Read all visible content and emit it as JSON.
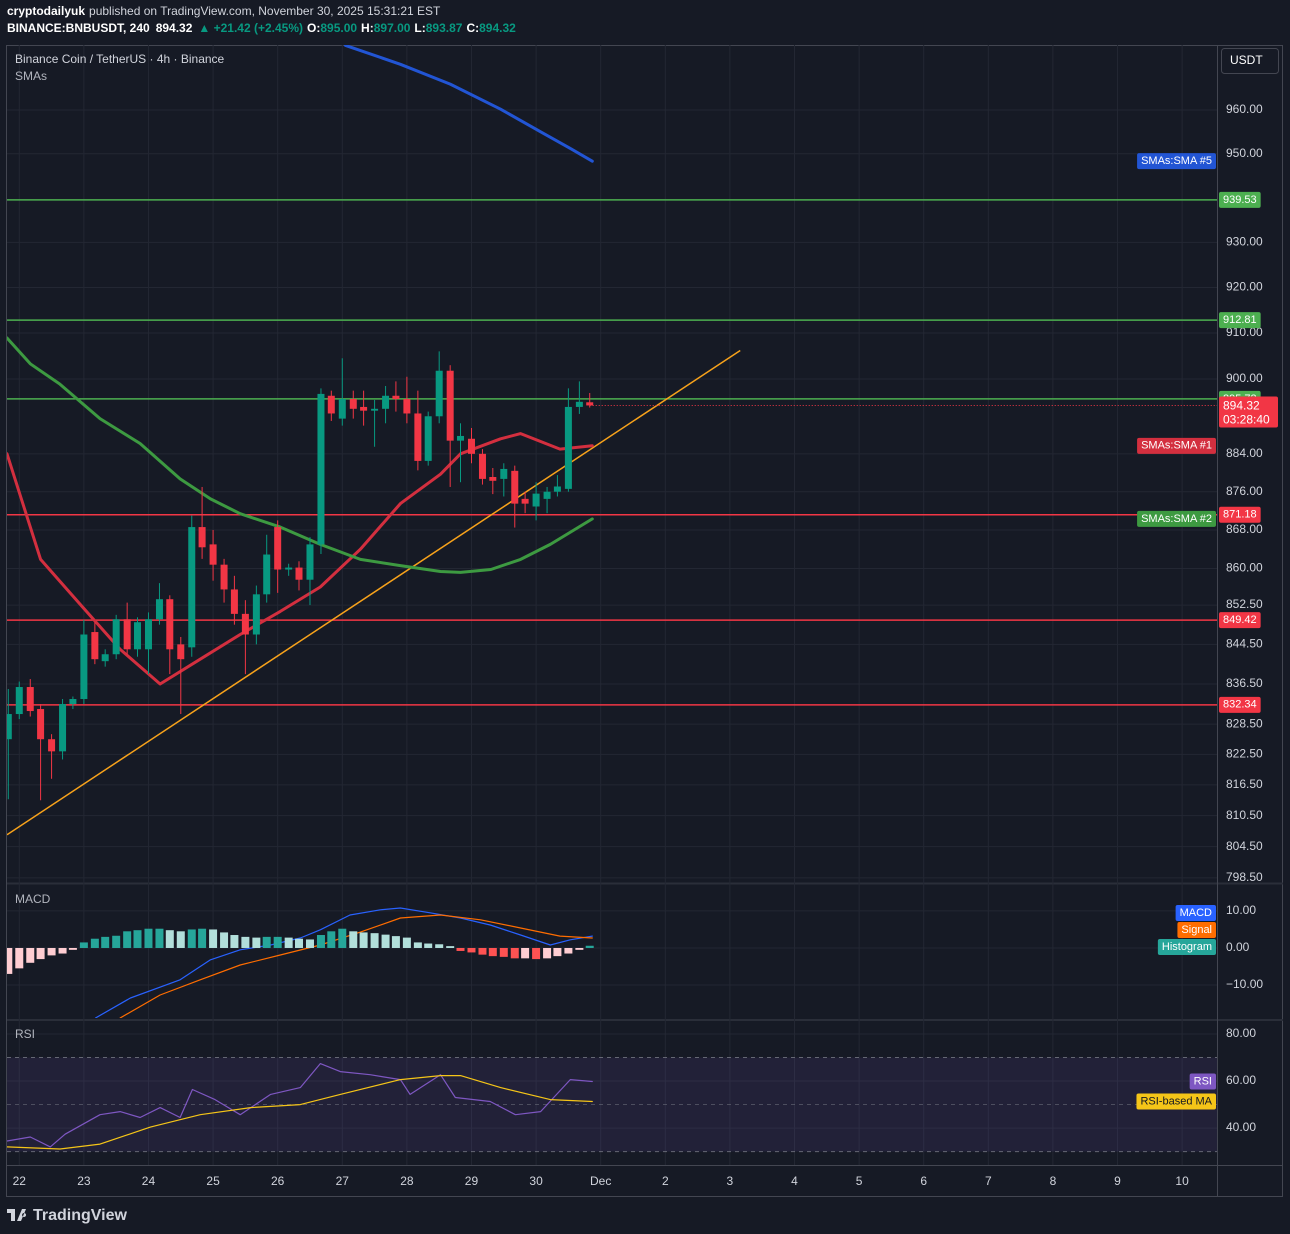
{
  "header": {
    "author": "cryptodailyuk",
    "published": "published on TradingView.com, November 30, 2025 15:31:21 EST",
    "symbol": "BINANCE:BNBUSDT, 240",
    "price": "894.32",
    "change": "▲ +21.42 (+2.45%)",
    "ohlc": [
      {
        "label": "O:",
        "value": "895.00"
      },
      {
        "label": "H:",
        "value": "897.00"
      },
      {
        "label": "L:",
        "value": "893.87"
      },
      {
        "label": "C:",
        "value": "894.32"
      }
    ]
  },
  "chart_data": [
    {
      "type": "candlestick",
      "title": "Binance Coin / TetherUS · 4h · Binance",
      "indicator": "SMAs",
      "currency": "USDT",
      "log_scale": true,
      "grid": true,
      "xlim": [
        21.81,
        40.54
      ],
      "xticks": [
        22,
        23,
        24,
        25,
        26,
        27,
        28,
        29,
        30,
        {
          "value": 31,
          "label": "Dec"
        },
        {
          "value": 32,
          "label": "2"
        },
        {
          "value": 33,
          "label": "3"
        },
        {
          "value": 34,
          "label": "4"
        },
        {
          "value": 35,
          "label": "5"
        },
        {
          "value": 36,
          "label": "6"
        },
        {
          "value": 37,
          "label": "7"
        },
        {
          "value": 38,
          "label": "8"
        },
        {
          "value": 39,
          "label": "9"
        },
        {
          "value": 40,
          "label": "10"
        }
      ],
      "ylim": [
        797.7,
        975.1
      ],
      "yticks": [
        {
          "value": 960,
          "label": "960.00"
        },
        {
          "value": 950,
          "label": "950.00"
        },
        {
          "value": 930,
          "label": "930.00"
        },
        {
          "value": 920,
          "label": "920.00"
        },
        {
          "value": 910,
          "label": "910.00"
        },
        {
          "value": 900,
          "label": "900.00"
        },
        {
          "value": 884,
          "label": "884.00"
        },
        {
          "value": 876,
          "label": "876.00"
        },
        {
          "value": 868,
          "label": "868.00"
        },
        {
          "value": 860,
          "label": "860.00"
        },
        {
          "value": 852.5,
          "label": "852.50"
        },
        {
          "value": 844.5,
          "label": "844.50"
        },
        {
          "value": 836.5,
          "label": "836.50"
        },
        {
          "value": 828.5,
          "label": "828.50"
        },
        {
          "value": 822.5,
          "label": "822.50"
        },
        {
          "value": 816.5,
          "label": "816.50"
        },
        {
          "value": 810.5,
          "label": "810.50"
        },
        {
          "value": 804.5,
          "label": "804.50"
        },
        {
          "value": 798.5,
          "label": "798.50"
        }
      ],
      "x": [
        21.83,
        22,
        22.17,
        22.33,
        22.5,
        22.67,
        22.83,
        23,
        23.17,
        23.33,
        23.5,
        23.67,
        23.83,
        24,
        24.17,
        24.33,
        24.5,
        24.67,
        24.83,
        25,
        25.17,
        25.33,
        25.5,
        25.67,
        25.83,
        26,
        26.17,
        26.33,
        26.5,
        26.67,
        26.83,
        27,
        27.17,
        27.33,
        27.5,
        27.67,
        27.83,
        28,
        28.17,
        28.33,
        28.5,
        28.67,
        28.83,
        29,
        29.17,
        29.33,
        29.5,
        29.67,
        29.83,
        30,
        30.17,
        30.33,
        30.5,
        30.67,
        30.83
      ],
      "open": [
        825.5,
        830.5,
        835.9,
        831.5,
        825.5,
        823.1,
        832.5,
        833.5,
        847.0,
        841.1,
        842.5,
        849.6,
        843.5,
        843.5,
        849.6,
        853.7,
        844.5,
        843.9,
        868.6,
        865.0,
        860.8,
        855.7,
        850.7,
        846.5,
        854.7,
        868.6,
        859.8,
        860.2,
        857.7,
        865.0,
        896.4,
        891.5,
        895.7,
        894.0,
        893.2,
        893.6,
        896.4,
        895.7,
        892.6,
        882.5,
        892.0,
        901.8,
        886.8,
        887.2,
        884.0,
        879.1,
        878.7,
        880.4,
        874.5,
        872.9,
        874.5,
        876.0,
        876.6,
        894.0,
        895.0
      ],
      "high": [
        835.5,
        837.0,
        837.5,
        832.5,
        826.5,
        833.5,
        834.0,
        849.5,
        849.0,
        843.5,
        850.5,
        853.0,
        850.0,
        851.0,
        857.0,
        854.5,
        846.0,
        871.0,
        877.0,
        868.0,
        862.0,
        858.5,
        853.5,
        856.5,
        867.0,
        870.0,
        861.0,
        861.5,
        866.5,
        898.0,
        897.5,
        904.5,
        897.5,
        897.5,
        895.5,
        898.5,
        899.5,
        900.5,
        897.5,
        893.0,
        906.0,
        903.0,
        890.5,
        889.5,
        885.0,
        881.0,
        882.0,
        881.5,
        876.0,
        878.0,
        877.0,
        879.5,
        898.0,
        899.5,
        897.0
      ],
      "low": [
        813.7,
        829.5,
        830.0,
        813.5,
        817.7,
        821.5,
        831.5,
        832.5,
        840.5,
        840.0,
        841.5,
        842.5,
        842.0,
        838.5,
        848.5,
        838.5,
        830.5,
        842.0,
        862.0,
        857.5,
        853.0,
        848.5,
        838.5,
        844.5,
        853.0,
        855.0,
        858.5,
        855.5,
        852.5,
        863.0,
        891.0,
        890.0,
        891.5,
        890.0,
        885.5,
        890.5,
        893.0,
        890.5,
        880.5,
        881.5,
        890.5,
        877.0,
        878.0,
        882.0,
        877.5,
        875.5,
        875.0,
        868.5,
        871.5,
        870.0,
        871.5,
        875.0,
        876.0,
        892.5,
        893.87
      ],
      "close": [
        830.5,
        835.9,
        831.1,
        825.5,
        823.1,
        832.5,
        833.5,
        846.5,
        841.5,
        842.5,
        849.6,
        843.5,
        849.0,
        849.6,
        853.7,
        843.5,
        841.5,
        868.6,
        864.4,
        860.8,
        855.7,
        850.7,
        846.5,
        854.7,
        862.9,
        859.8,
        860.2,
        857.7,
        865.0,
        896.8,
        892.6,
        895.7,
        893.6,
        893.2,
        893.6,
        896.4,
        895.7,
        892.6,
        882.5,
        892.0,
        901.8,
        886.8,
        887.8,
        884.0,
        878.7,
        878.3,
        880.8,
        873.5,
        873.5,
        875.6,
        876.0,
        877.1,
        894.0,
        895.1,
        894.32
      ],
      "up_color": "#089981",
      "down_color": "#f23645",
      "series": [
        {
          "name": "SMAs:SMA #5",
          "color": "#2255d4",
          "x": [
            27.05,
            27.9,
            28.67,
            29.45,
            30.07,
            30.53,
            30.87
          ],
          "values": [
            975.0,
            970.6,
            966.0,
            960.2,
            955.0,
            951.2,
            948.3
          ]
        },
        {
          "name": "SMAs:SMA #1",
          "color": "#d32f3f",
          "x": [
            21.81,
            22.33,
            22.94,
            23.56,
            24.18,
            24.8,
            25.42,
            26.04,
            26.66,
            27.28,
            27.9,
            28.52,
            28.83,
            29.45,
            29.76,
            30.37,
            30.87
          ],
          "values": [
            884.0,
            861.9,
            852.7,
            843.5,
            836.5,
            841.5,
            846.5,
            851.2,
            856.2,
            864.0,
            873.5,
            879.7,
            884.0,
            887.2,
            888.3,
            885.0,
            885.7
          ]
        },
        {
          "name": "SMAs:SMA #2",
          "color": "#3d9a41",
          "x": [
            21.81,
            22.17,
            22.63,
            23.25,
            23.87,
            24.49,
            24.96,
            25.42,
            26.04,
            26.66,
            27.28,
            27.9,
            28.52,
            28.83,
            29.3,
            29.76,
            30.22,
            30.87
          ],
          "values": [
            908.9,
            903.3,
            898.9,
            891.5,
            886.2,
            878.7,
            874.5,
            871.4,
            868.6,
            865.0,
            861.9,
            860.6,
            859.4,
            859.2,
            859.8,
            861.9,
            865.0,
            870.3
          ]
        }
      ],
      "trendline": {
        "color": "#f7a21b",
        "x": [
          21.81,
          33.16
        ],
        "values": [
          806.8,
          906.2
        ]
      },
      "levels": [
        {
          "value": 939.53,
          "color": "#4caf50"
        },
        {
          "value": 912.81,
          "color": "#4caf50"
        },
        {
          "value": 895.73,
          "color": "#4caf50"
        },
        {
          "value": 871.18,
          "color": "#f23645"
        },
        {
          "value": 849.42,
          "color": "#f23645"
        },
        {
          "value": 832.34,
          "color": "#f23645"
        }
      ],
      "last_price": {
        "value": 894.32,
        "countdown": "03:28:40",
        "color": "#f23645"
      }
    },
    {
      "type": "macd",
      "title": "MACD",
      "log_scale": false,
      "grid": true,
      "ylim": [
        -18.9,
        17.0
      ],
      "yticks": [
        {
          "value": 10,
          "label": "10.00"
        },
        {
          "value": 0,
          "label": "0.00"
        },
        {
          "value": -10,
          "label": "−10.00"
        }
      ],
      "series": [
        {
          "name": "MACD",
          "color": "#2962ff",
          "x": [
            23.18,
            23.72,
            24.49,
            24.96,
            25.42,
            25.89,
            26.35,
            26.66,
            27.12,
            27.59,
            27.9,
            28.36,
            28.83,
            29.29,
            29.76,
            30.22,
            30.53,
            30.87
          ],
          "values": [
            -18.9,
            -13.5,
            -8.6,
            -3.2,
            -0.5,
            0.8,
            2.7,
            4.9,
            8.9,
            10.3,
            10.8,
            9.5,
            8.1,
            6.2,
            3.5,
            0.8,
            2.2,
            3.2
          ]
        },
        {
          "name": "Signal",
          "color": "#ff6d00",
          "x": [
            23.56,
            24.18,
            24.8,
            25.42,
            26.04,
            26.66,
            27.28,
            27.9,
            28.52,
            29.14,
            29.76,
            30.37,
            30.87
          ],
          "values": [
            -18.9,
            -12.7,
            -8.6,
            -4.6,
            -1.9,
            0.8,
            4.3,
            8.1,
            8.9,
            7.6,
            5.4,
            3.2,
            2.7
          ]
        },
        {
          "name": "Histogram",
          "color": "#26a69a",
          "bar_colors": [
            "#26a69a",
            "#b2dfdb",
            "#ffcdd2",
            "#ff5252"
          ],
          "x": [
            21.83,
            22,
            22.17,
            22.33,
            22.5,
            22.67,
            22.83,
            23,
            23.17,
            23.33,
            23.5,
            23.67,
            23.83,
            24,
            24.17,
            24.33,
            24.5,
            24.67,
            24.83,
            25,
            25.17,
            25.33,
            25.5,
            25.67,
            25.83,
            26,
            26.17,
            26.33,
            26.5,
            26.67,
            26.83,
            27,
            27.17,
            27.33,
            27.5,
            27.67,
            27.83,
            28,
            28.17,
            28.33,
            28.5,
            28.67,
            28.83,
            29,
            29.17,
            29.33,
            29.5,
            29.67,
            29.83,
            30,
            30.17,
            30.33,
            30.5,
            30.67,
            30.83
          ],
          "values": [
            -7,
            -5.5,
            -4,
            -3,
            -2,
            -1.5,
            -0.5,
            1.5,
            2.5,
            3,
            3.3,
            4.5,
            4.8,
            5.2,
            5.2,
            4.8,
            4.5,
            5,
            5.2,
            5,
            4.2,
            3.5,
            3,
            2.8,
            3,
            3,
            2.8,
            2.5,
            2.3,
            3.5,
            4.5,
            5.2,
            4.5,
            4.2,
            4,
            3.6,
            3.2,
            2.8,
            1.5,
            1.2,
            1,
            0.5,
            -0.8,
            -1.2,
            -1.8,
            -2.2,
            -2.4,
            -2.8,
            -2.8,
            -3,
            -2.8,
            -2.2,
            -1.5,
            -0.5,
            0.6
          ]
        }
      ]
    },
    {
      "type": "rsi",
      "title": "RSI",
      "log_scale": false,
      "grid": true,
      "ylim": [
        24.3,
        85.1
      ],
      "yticks": [
        {
          "value": 80,
          "label": "80.00"
        },
        {
          "value": 60,
          "label": "60.00"
        },
        {
          "value": 40,
          "label": "40.00"
        }
      ],
      "levels": [
        70,
        50,
        30
      ],
      "band_color": "rgba(126,87,194,0.12)",
      "series": [
        {
          "name": "RSI",
          "color": "#7e57c2",
          "x": [
            21.81,
            22.17,
            22.48,
            22.71,
            23.25,
            23.56,
            23.87,
            24.18,
            24.49,
            24.68,
            25.03,
            25.42,
            25.89,
            26.35,
            26.66,
            26.97,
            27.43,
            27.9,
            28.05,
            28.52,
            28.75,
            29.29,
            29.68,
            30.07,
            30.53,
            30.87
          ],
          "values": [
            34.5,
            36.2,
            32,
            37.4,
            45.7,
            47,
            44.5,
            48.7,
            44.5,
            56.4,
            52.1,
            45.7,
            54.3,
            57.2,
            67.4,
            64,
            62.7,
            60.6,
            54.3,
            62.7,
            53,
            51.3,
            45.7,
            47,
            60.6,
            59.8
          ]
        },
        {
          "name": "RSI-based MA",
          "color": "#f5c518",
          "x": [
            21.81,
            22.63,
            23.25,
            24.03,
            24.8,
            25.58,
            26.35,
            26.97,
            27.9,
            28.52,
            28.83,
            29.45,
            30.22,
            30.87
          ],
          "values": [
            32,
            31.1,
            33.2,
            40.4,
            45.7,
            48.7,
            50,
            54.3,
            60.6,
            62.3,
            62.3,
            57.2,
            52.1,
            51.3
          ]
        }
      ]
    }
  ],
  "footer": {
    "brand": "TradingView"
  }
}
